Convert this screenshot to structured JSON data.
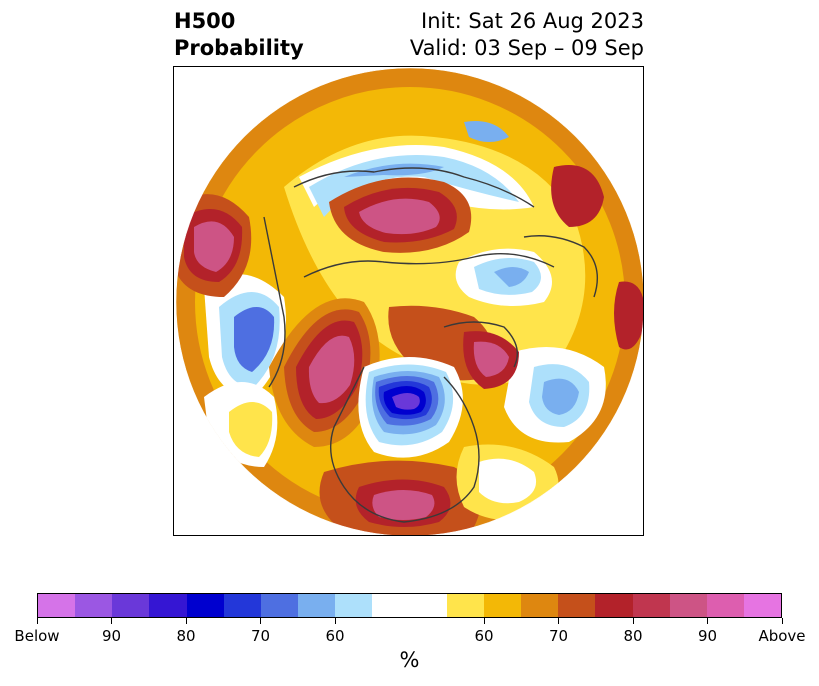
{
  "title": {
    "variable": "H500",
    "type": "Probability",
    "init": "Init: Sat 26 Aug 2023",
    "valid": "Valid: 03 Sep – 09 Sep"
  },
  "map": {
    "projection": "north polar stereographic",
    "coastline_color": "#3a3a3a",
    "outside_color": "#ffffff"
  },
  "colorbar": {
    "colors": [
      "#d573e8",
      "#9b57e3",
      "#6a38d9",
      "#3516d3",
      "#0000cf",
      "#2337d9",
      "#4e6fe1",
      "#79afef",
      "#ade0fb",
      "#ffffff",
      "#ffffff",
      "#ffe44b",
      "#f3b806",
      "#de8710",
      "#c5501b",
      "#b3222a",
      "#c0364f",
      "#cd5485",
      "#dd5eaf",
      "#e674e2"
    ],
    "tick_labels": [
      "Below",
      "90",
      "80",
      "70",
      "60",
      "60",
      "70",
      "80",
      "90",
      "Above"
    ],
    "unit": "%"
  }
}
